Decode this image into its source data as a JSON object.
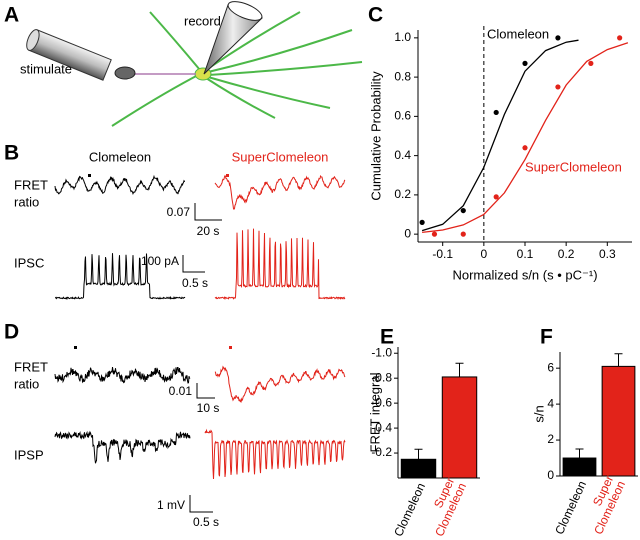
{
  "panel_labels": [
    "A",
    "B",
    "C",
    "D",
    "E",
    "F"
  ],
  "panel_a": {
    "stimulate": "stimulate",
    "record": "record"
  },
  "panel_b": {
    "clomeleon": "Clomeleon",
    "superclomeleon": "SuperClomeleon",
    "fret_label": [
      "FRET",
      "ratio"
    ],
    "ipsc_label": "IPSC",
    "fret_scale": [
      "0.07",
      "20 s"
    ],
    "ipsc_scale": [
      "100 pA",
      "0.5 s"
    ]
  },
  "panel_d": {
    "fret_label": [
      "FRET",
      "ratio"
    ],
    "ipsp_label": "IPSP",
    "fret_scale": [
      "0.01",
      "10 s"
    ],
    "ipsp_scale": [
      "1 mV",
      "0.5 s"
    ]
  },
  "chart_data": [
    {
      "type": "scatter",
      "ylabel": "Cumulative Probability",
      "xlabel": "Normalized s/n (s • pC⁻¹)",
      "xlim": [
        -0.16,
        0.36
      ],
      "ylim": [
        -0.04,
        1.04
      ],
      "xticks": [
        -0.1,
        0,
        0.1,
        0.2,
        0.3
      ],
      "yticks": [
        0,
        0.2,
        0.4,
        0.6,
        0.8,
        {
          "value": 1,
          "label": "1.0"
        }
      ],
      "dashed_line_x": 0,
      "series": [
        {
          "name": "Clomeleon",
          "color": "#000000",
          "x": [
            -0.15,
            -0.05,
            0.03,
            0.1,
            0.18
          ],
          "values": [
            0.06,
            0.12,
            0.62,
            0.87,
            1.0
          ],
          "fit": {
            "x": [
              -0.15,
              -0.1,
              -0.05,
              0,
              0.05,
              0.1,
              0.15,
              0.2,
              0.23
            ],
            "values": [
              0.018,
              0.05,
              0.145,
              0.34,
              0.61,
              0.83,
              0.935,
              0.978,
              0.988
            ]
          }
        },
        {
          "name": "SuperClomeleon",
          "color": "#e2231a",
          "x": [
            -0.12,
            -0.05,
            0.03,
            0.1,
            0.18,
            0.26,
            0.33
          ],
          "values": [
            0.0,
            0.0,
            0.19,
            0.44,
            0.75,
            0.87,
            1.0
          ],
          "fit": {
            "x": [
              -0.15,
              -0.1,
              -0.05,
              0,
              0.05,
              0.1,
              0.15,
              0.2,
              0.25,
              0.3,
              0.35
            ],
            "values": [
              0.009,
              0.021,
              0.047,
              0.1,
              0.21,
              0.38,
              0.58,
              0.76,
              0.88,
              0.94,
              0.975
            ]
          }
        }
      ]
    },
    {
      "type": "bar",
      "ylabel": "FRET integral",
      "categories": [
        [
          "Clomeleon"
        ],
        [
          "Super",
          "Clomeleon"
        ]
      ],
      "values": [
        -0.15,
        -0.81
      ],
      "errors": [
        0.08,
        0.11
      ],
      "colors": [
        "#000000",
        "#e2231a"
      ],
      "ylim": [
        0,
        -1.05
      ],
      "yticks": [
        {
          "value": -1,
          "label": "-1.0"
        },
        -0.8,
        -0.6,
        -0.4,
        -0.2
      ]
    },
    {
      "type": "bar",
      "ylabel": "s/n",
      "categories": [
        [
          "Clomeleon"
        ],
        [
          "Super",
          "Clomeleon"
        ]
      ],
      "values": [
        1.0,
        6.1
      ],
      "errors": [
        0.5,
        0.7
      ],
      "colors": [
        "#000000",
        "#e2231a"
      ],
      "ylim": [
        0,
        6.9
      ],
      "yticks": [
        0,
        2,
        4,
        6
      ]
    }
  ]
}
